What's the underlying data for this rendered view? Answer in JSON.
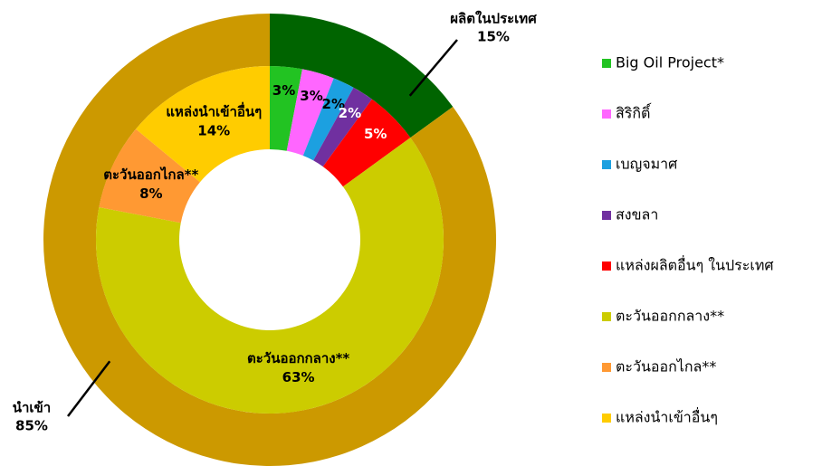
{
  "chart_data": {
    "type": "nested-donut",
    "outer": {
      "categories": [
        "ผลิตในประเทศ",
        "นำเข้า"
      ],
      "values": [
        15,
        85
      ],
      "value_labels": [
        "15%",
        "85%"
      ],
      "colors": [
        "#006400",
        "#cc9900"
      ]
    },
    "inner": {
      "categories": [
        "Big Oil Project*",
        "สิริกิติ์",
        "เบญจมาศ",
        "สงขลา",
        "แหล่งผลิตอื่นๆ ในประเทศ",
        "ตะวันออกกลาง**",
        "ตะวันออกไกล**",
        "แหล่งนำเข้าอื่นๆ"
      ],
      "values": [
        3,
        3,
        2,
        2,
        5,
        63,
        8,
        14
      ],
      "value_labels": [
        "3%",
        "3%",
        "2%",
        "2%",
        "5%",
        "63%",
        "8%",
        "14%"
      ],
      "colors": [
        "#22c322",
        "#ff66ff",
        "#1ca0e0",
        "#7030a0",
        "#ff0000",
        "#cccc00",
        "#ff9933",
        "#ffcc00"
      ]
    },
    "legend": "right"
  }
}
